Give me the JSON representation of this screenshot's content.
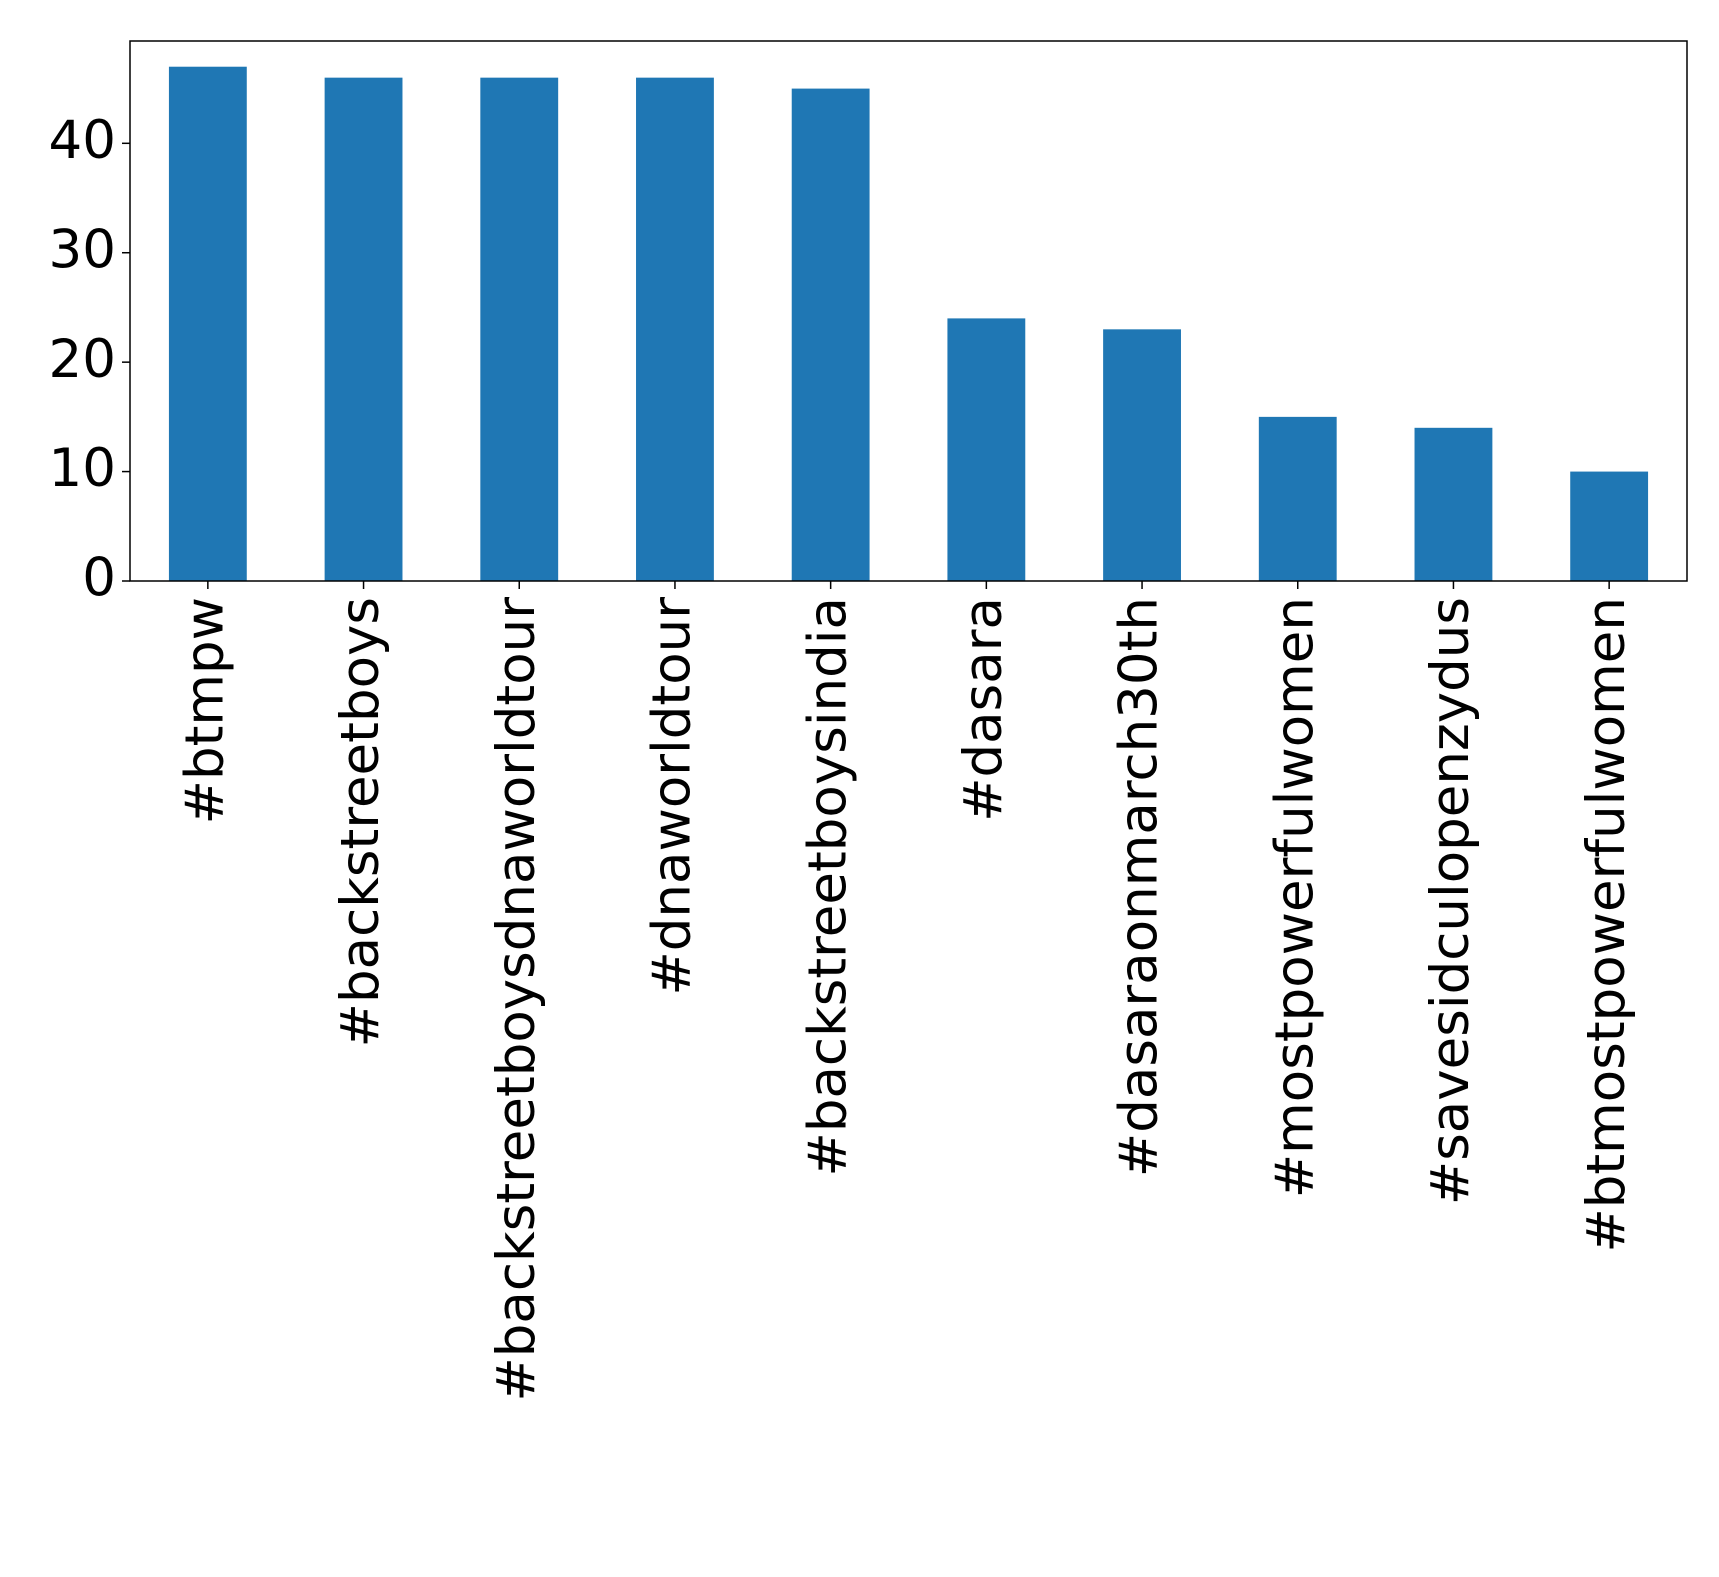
{
  "chart_data": {
    "type": "bar",
    "categories": [
      "#btmpw",
      "#backstreetboys",
      "#backstreetboysdnaworldtour",
      "#dnaworldtour",
      "#backstreetboysindia",
      "#dasara",
      "#dasaraonmarch30th",
      "#mostpowerfulwomen",
      "#savesidculopenzydus",
      "#btmostpowerfulwomen"
    ],
    "values": [
      47,
      46,
      46,
      46,
      45,
      24,
      23,
      15,
      14,
      10
    ],
    "color": "#1f77b4",
    "ylim": [
      0,
      49.35
    ],
    "yticks": [
      0,
      10,
      20,
      30,
      40
    ],
    "grid": false
  }
}
